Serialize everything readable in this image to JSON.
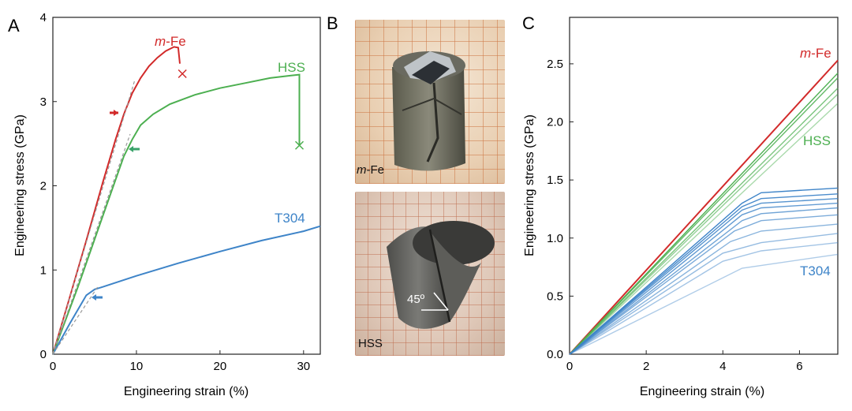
{
  "panels": {
    "A": {
      "label": "A",
      "chart_data": {
        "type": "line",
        "xlabel": "Engineering strain (%)",
        "ylabel": "Engineering stress (GPa)",
        "xlim": [
          0,
          32
        ],
        "ylim": [
          0,
          4
        ],
        "xticks": [
          0,
          10,
          20,
          30
        ],
        "yticks": [
          0,
          1,
          2,
          3,
          4
        ],
        "series": [
          {
            "name": "m-Fe",
            "color": "#d22a2a",
            "x": [
              0,
              2,
              4,
              6,
              7.5,
              8.5,
              9.5,
              10.5,
              11.5,
              12.5,
              13.5,
              14.5,
              15.0,
              15.2
            ],
            "y": [
              0,
              0.67,
              1.35,
              2.05,
              2.55,
              2.85,
              3.1,
              3.28,
              3.42,
              3.52,
              3.6,
              3.65,
              3.64,
              3.45
            ],
            "fracture": [
              15.5,
              3.33
            ]
          },
          {
            "name": "HSS",
            "color": "#4caf50",
            "x": [
              0,
              3,
              6,
              8.5,
              9.5,
              10.5,
              12,
              14,
              17,
              20,
              23,
              26,
              28.5,
              29.5,
              29.5
            ],
            "y": [
              0,
              0.8,
              1.65,
              2.35,
              2.55,
              2.72,
              2.85,
              2.97,
              3.08,
              3.16,
              3.22,
              3.28,
              3.31,
              3.32,
              2.48
            ],
            "fracture": [
              29.5,
              2.48
            ]
          },
          {
            "name": "T304",
            "color": "#3e84c8",
            "x": [
              0,
              2,
              4,
              5,
              6,
              10,
              15,
              20,
              25,
              30,
              32
            ],
            "y": [
              0,
              0.36,
              0.7,
              0.77,
              0.8,
              0.93,
              1.08,
              1.22,
              1.35,
              1.46,
              1.52
            ]
          }
        ],
        "annotations": [
          "m-Fe",
          "HSS",
          "T304"
        ]
      }
    },
    "B": {
      "label": "B",
      "top_caption": "m-Fe",
      "bottom_caption": "HSS",
      "angle_label": "45º"
    },
    "C": {
      "label": "C",
      "chart_data": {
        "type": "line",
        "xlabel": "Engineering strain (%)",
        "ylabel": "Engineering stress (GPa)",
        "xlim": [
          0,
          7
        ],
        "ylim": [
          0,
          2.9
        ],
        "xticks": [
          0,
          2,
          4,
          6
        ],
        "yticks": [
          0.0,
          0.5,
          1.0,
          1.5,
          2.0,
          2.5
        ],
        "series": [
          {
            "name": "m-Fe",
            "color": "#d22a2a",
            "x": [
              0,
              7
            ],
            "y": [
              0,
              2.53
            ]
          },
          {
            "name": "HSS",
            "color": "#4caf50",
            "family": [
              {
                "x": [
                  0,
                  7
                ],
                "y": [
                  0,
                  2.42
                ]
              },
              {
                "x": [
                  0,
                  7
                ],
                "y": [
                  0,
                  2.38
                ]
              },
              {
                "x": [
                  0,
                  7
                ],
                "y": [
                  0,
                  2.29
                ]
              },
              {
                "x": [
                  0,
                  7
                ],
                "y": [
                  0,
                  2.24
                ]
              },
              {
                "x": [
                  0,
                  7
                ],
                "y": [
                  0,
                  2.16
                ]
              }
            ]
          },
          {
            "name": "T304",
            "color": "#3e84c8",
            "family": [
              {
                "x": [
                  0,
                  4.5,
                  5.0,
                  7
                ],
                "y": [
                  0,
                  1.3,
                  1.39,
                  1.43
                ]
              },
              {
                "x": [
                  0,
                  4.5,
                  5.0,
                  7
                ],
                "y": [
                  0,
                  1.27,
                  1.34,
                  1.38
                ]
              },
              {
                "x": [
                  0,
                  4.5,
                  5.0,
                  7
                ],
                "y": [
                  0,
                  1.24,
                  1.3,
                  1.34
                ]
              },
              {
                "x": [
                  0,
                  4.5,
                  5.0,
                  7
                ],
                "y": [
                  0,
                  1.2,
                  1.26,
                  1.3
                ]
              },
              {
                "x": [
                  0,
                  4.5,
                  5.0,
                  7
                ],
                "y": [
                  0,
                  1.15,
                  1.21,
                  1.26
                ]
              },
              {
                "x": [
                  0,
                  4.3,
                  5.0,
                  7
                ],
                "y": [
                  0,
                  1.06,
                  1.15,
                  1.2
                ]
              },
              {
                "x": [
                  0,
                  4.2,
                  5.0,
                  7
                ],
                "y": [
                  0,
                  0.97,
                  1.06,
                  1.12
                ]
              },
              {
                "x": [
                  0,
                  4.0,
                  5.0,
                  7
                ],
                "y": [
                  0,
                  0.87,
                  0.96,
                  1.04
                ]
              },
              {
                "x": [
                  0,
                  4.0,
                  5.0,
                  7
                ],
                "y": [
                  0,
                  0.8,
                  0.89,
                  0.96
                ]
              },
              {
                "x": [
                  0,
                  4.5,
                  7
                ],
                "y": [
                  0,
                  0.74,
                  0.86
                ]
              }
            ]
          }
        ],
        "annotations": [
          "m-Fe",
          "HSS",
          "T304"
        ]
      }
    }
  }
}
